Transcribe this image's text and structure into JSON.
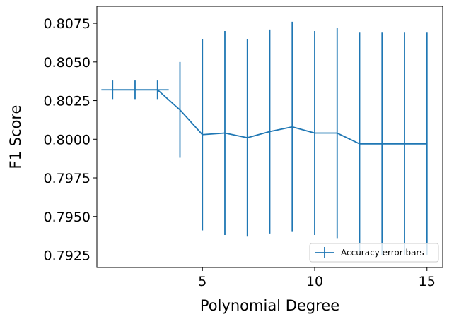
{
  "chart_data": {
    "type": "line",
    "xlabel": "Polynomial Degree",
    "ylabel": "F1 Score",
    "xlim": [
      0.3,
      15.7
    ],
    "ylim": [
      0.7917,
      0.8086
    ],
    "xticks": [
      5,
      10,
      15
    ],
    "xtick_labels": [
      "5",
      "10",
      "15"
    ],
    "yticks": [
      0.7925,
      0.795,
      0.7975,
      0.8,
      0.8025,
      0.805,
      0.8075
    ],
    "ytick_labels": [
      "0.7925",
      "0.7950",
      "0.7975",
      "0.8000",
      "0.8025",
      "0.8050",
      "0.8075"
    ],
    "grid": false,
    "legend_position": "lower-right",
    "series": [
      {
        "name": "Accuracy error bars",
        "color": "#1f77b4",
        "x": [
          1,
          2,
          3,
          4,
          5,
          6,
          7,
          8,
          9,
          10,
          11,
          12,
          13,
          14,
          15
        ],
        "y": [
          0.8032,
          0.8032,
          0.8032,
          0.8019,
          0.8003,
          0.8004,
          0.8001,
          0.8005,
          0.8008,
          0.8004,
          0.8004,
          0.7997,
          0.7997,
          0.7997,
          0.7997
        ],
        "yerr": [
          0.0006,
          0.0006,
          0.0006,
          0.0031,
          0.0062,
          0.0066,
          0.0064,
          0.0066,
          0.0068,
          0.0066,
          0.0068,
          0.0072,
          0.0072,
          0.0072,
          0.0072
        ],
        "xerr": [
          0.5,
          0.5,
          0.5,
          0,
          0,
          0,
          0,
          0,
          0,
          0,
          0,
          0,
          0,
          0,
          0
        ]
      }
    ]
  }
}
